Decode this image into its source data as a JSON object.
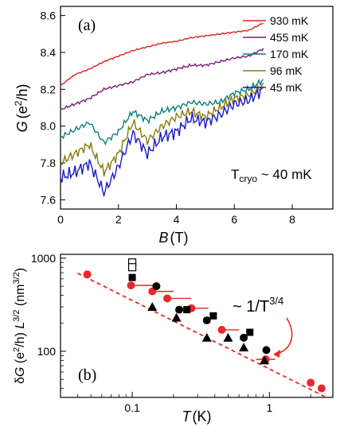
{
  "chart_data": [
    {
      "panel_label": "(a)",
      "type": "line",
      "xlabel_symbol": "B",
      "xlabel_unit": "(T)",
      "ylabel_symbol": "G",
      "ylabel_unit": "(e",
      "ylabel_unit_sup": "2",
      "ylabel_unit_end": "/h)",
      "xlim": [
        0,
        9.4
      ],
      "ylim": [
        7.55,
        8.65
      ],
      "xticks": [
        0,
        2,
        4,
        6,
        8
      ],
      "yticks": [
        7.6,
        7.8,
        8.0,
        8.2,
        8.4,
        8.6
      ],
      "xtick_labels": [
        "0",
        "2",
        "4",
        "6",
        "8"
      ],
      "ytick_labels": [
        "7.6",
        "7.8",
        "8.0",
        "8.2",
        "8.4",
        "8.6"
      ],
      "annotation_main": "T",
      "annotation_sub": "cryo",
      "annotation_tail": " ~ 40 mK",
      "legend_position": "top-right",
      "series": [
        {
          "name": "930 mK",
          "color": "#e0201e",
          "x": [
            0,
            0.5,
            1,
            1.5,
            2,
            2.5,
            3,
            3.5,
            4,
            4.5,
            5,
            5.5,
            6,
            6.5,
            7
          ],
          "y": [
            8.22,
            8.28,
            8.31,
            8.35,
            8.38,
            8.41,
            8.43,
            8.45,
            8.46,
            8.48,
            8.49,
            8.5,
            8.51,
            8.52,
            8.56
          ]
        },
        {
          "name": "455 mK",
          "color": "#7a1a7f",
          "x": [
            0,
            0.5,
            1,
            1.5,
            2,
            2.5,
            3,
            3.5,
            4,
            4.5,
            5,
            5.5,
            6,
            6.5,
            7
          ],
          "y": [
            8.09,
            8.12,
            8.15,
            8.2,
            8.22,
            8.24,
            8.28,
            8.29,
            8.31,
            8.33,
            8.33,
            8.35,
            8.37,
            8.38,
            8.42
          ]
        },
        {
          "name": "170 mK",
          "color": "#0e7f7f",
          "x": [
            0,
            0.5,
            1,
            1.5,
            2,
            2.5,
            3,
            3.5,
            4,
            4.5,
            5,
            5.5,
            6,
            6.5,
            7
          ],
          "y": [
            7.94,
            7.98,
            8.02,
            7.91,
            7.97,
            8.08,
            8.03,
            8.08,
            8.1,
            8.13,
            8.12,
            8.13,
            8.18,
            8.2,
            8.25
          ]
        },
        {
          "name": "96 mK",
          "color": "#8a7a10",
          "x": [
            0,
            0.5,
            1,
            1.5,
            2,
            2.5,
            3,
            3.5,
            4,
            4.5,
            5,
            5.5,
            6,
            6.5,
            7
          ],
          "y": [
            7.8,
            7.85,
            7.9,
            7.75,
            7.85,
            8.02,
            7.92,
            8.0,
            8.05,
            8.08,
            8.05,
            8.1,
            8.15,
            8.17,
            8.22
          ]
        },
        {
          "name": "45 mK",
          "color": "#1a1acc",
          "x": [
            0,
            0.5,
            1,
            1.5,
            2,
            2.5,
            3,
            3.5,
            4,
            4.5,
            5,
            5.5,
            6,
            6.5,
            7
          ],
          "y": [
            7.72,
            7.75,
            7.8,
            7.64,
            7.78,
            7.96,
            7.85,
            7.94,
            7.97,
            8.04,
            8.02,
            8.06,
            8.12,
            8.14,
            8.2
          ]
        }
      ]
    },
    {
      "panel_label": "(b)",
      "type": "scatter",
      "xscale": "log",
      "yscale": "log",
      "xlabel_symbol": "T",
      "xlabel_unit": "(K)",
      "ylabel_prefix": "δ",
      "ylabel_symbol": "G",
      "ylabel_unit": " (e",
      "ylabel_unit_sup": "2",
      "ylabel_unit_end": "/h) ",
      "ylabel_L": "L",
      "ylabel_L_sup": "3/2",
      "ylabel_area": " (nm",
      "ylabel_area_sup": "3/2",
      "ylabel_close": ")",
      "xlim": [
        0.03,
        2.9
      ],
      "ylim": [
        32,
        1100
      ],
      "xticks": [
        0.1,
        1
      ],
      "yticks": [
        100,
        1000
      ],
      "xtick_labels": [
        "0.1",
        "1"
      ],
      "ytick_labels": [
        "100",
        "1000"
      ],
      "annotation_text": "~ 1/T",
      "annotation_sup": "3/4",
      "annotation_arrow_color": "#e8282a",
      "fit_line": {
        "style": "dashed",
        "color": "#e8282a",
        "x": [
          0.04,
          2.6
        ],
        "y": [
          690,
          32
        ]
      },
      "series": [
        {
          "marker": "circle",
          "color": "#e8282a",
          "x": [
            0.047,
            0.098,
            0.14,
            0.18,
            0.27,
            0.45,
            0.94,
            2.0,
            2.4
          ],
          "y": [
            670,
            510,
            440,
            370,
            290,
            170,
            82,
            46,
            40
          ],
          "xerr_low": [
            0.047,
            0.098,
            0.14,
            0.18,
            0.27,
            0.45,
            0.8,
            2.0,
            2.4
          ],
          "xerr_high": [
            0.047,
            0.15,
            0.2,
            0.27,
            0.36,
            0.6,
            1.1,
            2.0,
            2.4
          ]
        },
        {
          "marker": "circle",
          "color": "#000000",
          "x": [
            0.15,
            0.22,
            0.35,
            0.65,
            0.95
          ],
          "y": [
            500,
            280,
            215,
            140,
            103
          ]
        },
        {
          "marker": "square",
          "color": "#000000",
          "x": [
            0.1,
            0.25,
            0.39,
            0.72
          ],
          "y": [
            620,
            280,
            240,
            160
          ]
        },
        {
          "marker": "triangle",
          "color": "#000000",
          "x": [
            0.14,
            0.21,
            0.35,
            0.5,
            0.65,
            0.92
          ],
          "y": [
            300,
            230,
            140,
            140,
            110,
            80
          ]
        },
        {
          "marker": "square-open",
          "color": "#000000",
          "x": [
            0.1,
            0.1
          ],
          "y": [
            900,
            800
          ]
        }
      ]
    }
  ]
}
